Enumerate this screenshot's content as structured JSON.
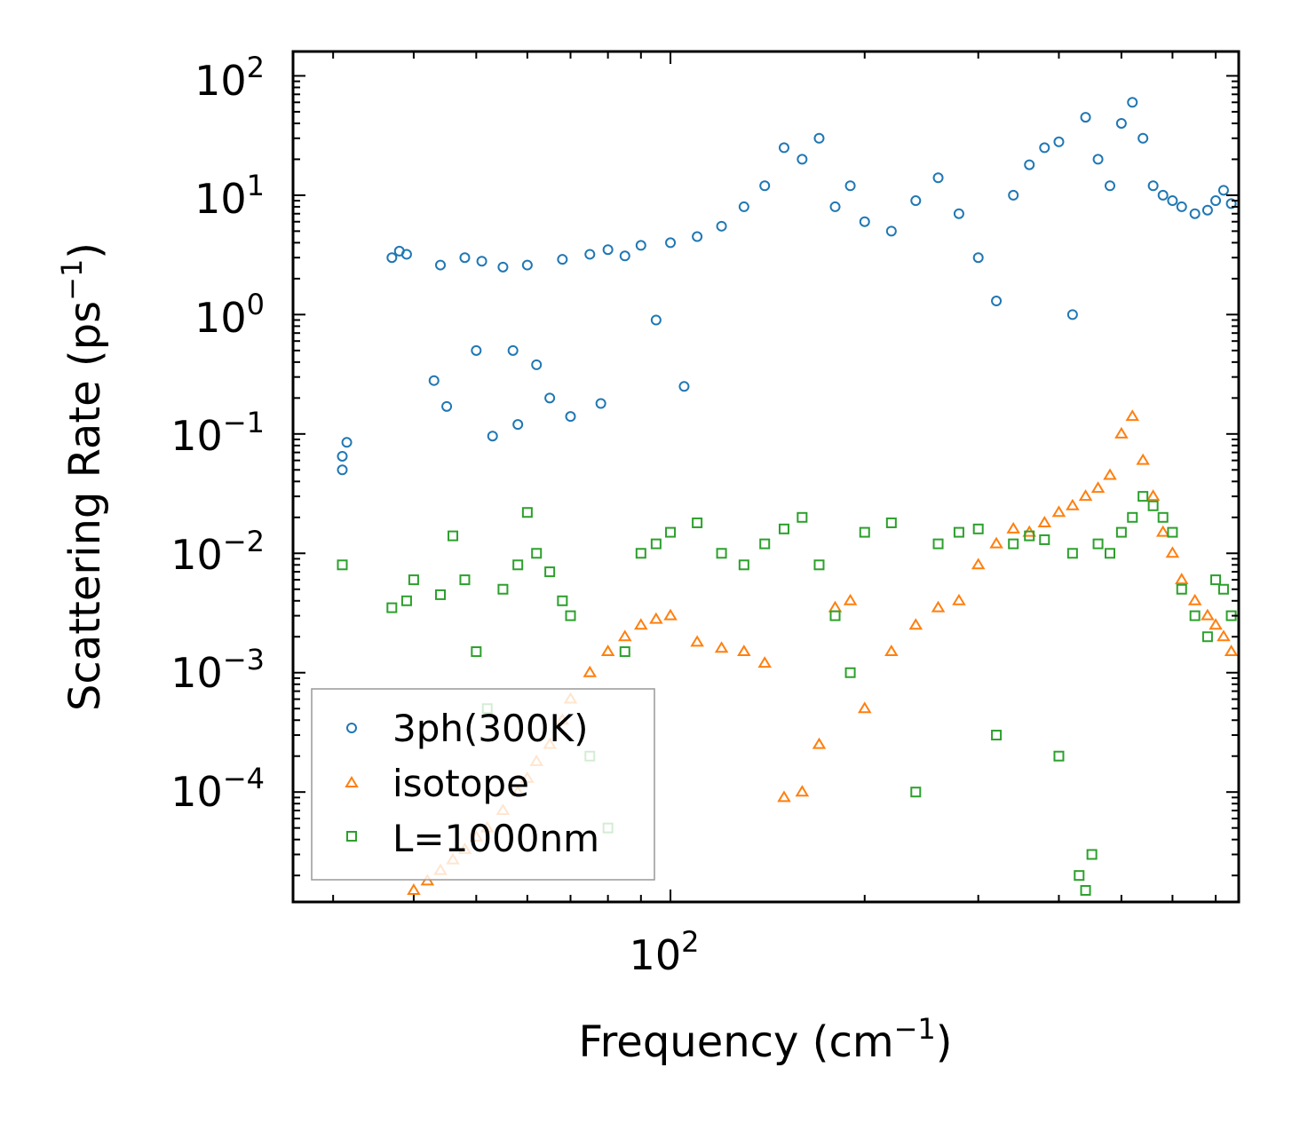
{
  "chart_data": {
    "type": "scatter",
    "title": "",
    "xlabel": "Frequency (cm",
    "xlabel_sup": "−1",
    "xlabel_close": ")",
    "ylabel": "Scattering Rate (ps",
    "ylabel_sup": "−1",
    "ylabel_close": ")",
    "xscale": "log",
    "yscale": "log",
    "xlim": [
      26,
      760
    ],
    "ylim": [
      1.2e-05,
      160
    ],
    "x_ticks": [
      {
        "base": "10",
        "exp": "2",
        "value": 100
      }
    ],
    "y_ticks": [
      {
        "base": "10",
        "exp": "2",
        "value": 100
      },
      {
        "base": "10",
        "exp": "1",
        "value": 10
      },
      {
        "base": "10",
        "exp": "0",
        "value": 1
      },
      {
        "base": "10",
        "exp": "−1",
        "value": 0.1
      },
      {
        "base": "10",
        "exp": "−2",
        "value": 0.01
      },
      {
        "base": "10",
        "exp": "−3",
        "value": 0.001
      },
      {
        "base": "10",
        "exp": "−4",
        "value": 0.0001
      }
    ],
    "legend_position": "lower-left",
    "series": [
      {
        "name": "3ph(300K)",
        "marker": "circle",
        "color": "#1f77b4",
        "x": [
          31,
          31,
          31.5,
          37,
          38,
          39,
          43,
          44,
          45,
          48,
          50,
          51,
          53,
          55,
          57,
          58,
          60,
          62,
          65,
          68,
          70,
          75,
          78,
          80,
          85,
          90,
          95,
          100,
          105,
          110,
          120,
          130,
          140,
          150,
          160,
          170,
          180,
          190,
          200,
          220,
          240,
          260,
          280,
          300,
          320,
          340,
          360,
          380,
          400,
          420,
          440,
          460,
          480,
          500,
          520,
          540,
          560,
          580,
          600,
          620,
          650,
          680,
          700,
          720,
          740
        ],
        "y": [
          0.05,
          0.065,
          0.085,
          3.0,
          3.4,
          3.2,
          0.28,
          2.6,
          0.17,
          3.0,
          0.5,
          2.8,
          0.096,
          2.5,
          0.5,
          0.12,
          2.6,
          0.38,
          0.2,
          2.9,
          0.14,
          3.2,
          0.18,
          3.5,
          3.1,
          3.8,
          0.9,
          4.0,
          0.25,
          4.5,
          5.5,
          8.0,
          12,
          25,
          20,
          30,
          8,
          12,
          6,
          5,
          9,
          14,
          7,
          3,
          1.3,
          10,
          18,
          25,
          28,
          1.0,
          45,
          20,
          12,
          40,
          60,
          30,
          12,
          10,
          9,
          8,
          7,
          7.5,
          9,
          11,
          8.5
        ]
      },
      {
        "name": "isotope",
        "marker": "triangle",
        "color": "#ff7f0e",
        "x": [
          40,
          42,
          44,
          46,
          48,
          50,
          52,
          55,
          58,
          60,
          62,
          65,
          68,
          70,
          75,
          80,
          85,
          90,
          95,
          100,
          110,
          120,
          130,
          140,
          150,
          160,
          170,
          180,
          190,
          200,
          220,
          240,
          260,
          280,
          300,
          320,
          340,
          360,
          380,
          400,
          420,
          440,
          460,
          480,
          500,
          520,
          540,
          560,
          580,
          600,
          620,
          650,
          680,
          700,
          720,
          740
        ],
        "y": [
          1.5e-05,
          1.8e-05,
          2.2e-05,
          2.7e-05,
          3.3e-05,
          4.2e-05,
          5e-05,
          7e-05,
          0.0001,
          0.00013,
          0.00018,
          0.00025,
          0.0004,
          0.0006,
          0.001,
          0.0015,
          0.002,
          0.0025,
          0.0028,
          0.003,
          0.0018,
          0.0016,
          0.0015,
          0.0012,
          9e-05,
          0.0001,
          0.00025,
          0.0035,
          0.004,
          0.0005,
          0.0015,
          0.0025,
          0.0035,
          0.004,
          0.008,
          0.012,
          0.016,
          0.015,
          0.018,
          0.022,
          0.025,
          0.03,
          0.035,
          0.045,
          0.1,
          0.14,
          0.06,
          0.03,
          0.015,
          0.01,
          0.006,
          0.004,
          0.003,
          0.0025,
          0.002,
          0.0015
        ]
      },
      {
        "name": "L=1000nm",
        "marker": "square",
        "color": "#2ca02c",
        "x": [
          31,
          37,
          39,
          40,
          44,
          46,
          48,
          50,
          52,
          55,
          58,
          60,
          62,
          65,
          68,
          70,
          75,
          80,
          85,
          90,
          95,
          100,
          110,
          120,
          130,
          140,
          150,
          160,
          170,
          180,
          190,
          200,
          220,
          240,
          260,
          280,
          300,
          320,
          340,
          360,
          380,
          400,
          420,
          430,
          440,
          450,
          460,
          480,
          500,
          520,
          540,
          560,
          580,
          600,
          620,
          650,
          680,
          700,
          720,
          740
        ],
        "y": [
          0.008,
          0.0035,
          0.004,
          0.006,
          0.0045,
          0.014,
          0.006,
          0.0015,
          0.0005,
          0.005,
          0.008,
          0.022,
          0.01,
          0.007,
          0.004,
          0.003,
          0.0002,
          5e-05,
          0.0015,
          0.01,
          0.012,
          0.015,
          0.018,
          0.01,
          0.008,
          0.012,
          0.016,
          0.02,
          0.008,
          0.003,
          0.001,
          0.015,
          0.018,
          0.0001,
          0.012,
          0.015,
          0.016,
          0.0003,
          0.012,
          0.014,
          0.013,
          0.0002,
          0.01,
          2e-05,
          1.5e-05,
          3e-05,
          0.012,
          0.01,
          0.015,
          0.02,
          0.03,
          0.025,
          0.02,
          0.015,
          0.005,
          0.003,
          0.002,
          0.006,
          0.005,
          0.003
        ]
      }
    ]
  }
}
